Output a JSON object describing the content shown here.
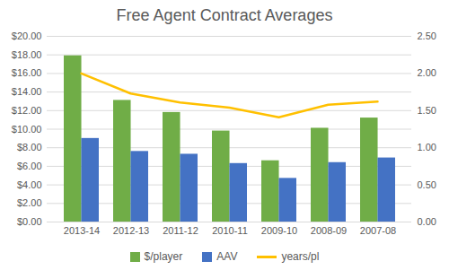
{
  "chart_data": {
    "type": "bar",
    "title": "Free Agent Contract Averages",
    "categories": [
      "2013-14",
      "2012-13",
      "2011-12",
      "2010-11",
      "2009-10",
      "2008-09",
      "2007-08"
    ],
    "series": [
      {
        "name": "$/player",
        "color": "#70ad47",
        "type": "bar",
        "values": [
          17.9,
          13.1,
          11.8,
          9.8,
          6.6,
          10.1,
          11.2
        ]
      },
      {
        "name": "AAV",
        "color": "#4472c4",
        "type": "bar",
        "values": [
          9.0,
          7.6,
          7.3,
          6.3,
          4.7,
          6.4,
          6.9
        ]
      },
      {
        "name": "years/pl",
        "color": "#ffc000",
        "type": "line",
        "axis": "y2",
        "values": [
          2.0,
          1.73,
          1.61,
          1.54,
          1.41,
          1.58,
          1.62
        ]
      }
    ],
    "ylim": [
      0,
      20
    ],
    "yticks": [
      {
        "value": 0,
        "label": "$0.00"
      },
      {
        "value": 2,
        "label": "$2.00"
      },
      {
        "value": 4,
        "label": "$4.00"
      },
      {
        "value": 6,
        "label": "$6.00"
      },
      {
        "value": 8,
        "label": "$8.00"
      },
      {
        "value": 10,
        "label": "$10.00"
      },
      {
        "value": 12,
        "label": "$12.00"
      },
      {
        "value": 14,
        "label": "$14.00"
      },
      {
        "value": 16,
        "label": "$16.00"
      },
      {
        "value": 18,
        "label": "$18.00"
      },
      {
        "value": 20,
        "label": "$20.00"
      }
    ],
    "y2lim": [
      0,
      2.5
    ],
    "y2ticks": [
      {
        "value": 0,
        "label": "0.00"
      },
      {
        "value": 0.5,
        "label": "0.50"
      },
      {
        "value": 1,
        "label": "1.00"
      },
      {
        "value": 1.5,
        "label": "1.50"
      },
      {
        "value": 2,
        "label": "2.00"
      },
      {
        "value": 2.5,
        "label": "2.50"
      }
    ],
    "grid": true,
    "legend": "bottom"
  }
}
